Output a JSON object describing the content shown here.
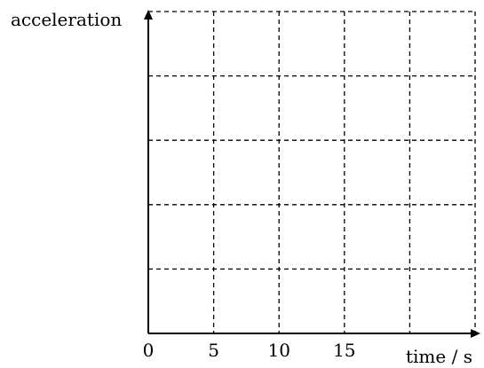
{
  "chart_data": {
    "type": "line",
    "title": "",
    "xlabel": "time / s",
    "ylabel": "acceleration",
    "x_ticks": [
      0,
      5,
      10,
      15
    ],
    "xlim": [
      0,
      25
    ],
    "y_grid_lines": 5,
    "grid": true,
    "grid_style": "dashed",
    "series": []
  },
  "colors": {
    "axis": "#000000",
    "grid": "#000000",
    "background": "#ffffff"
  }
}
